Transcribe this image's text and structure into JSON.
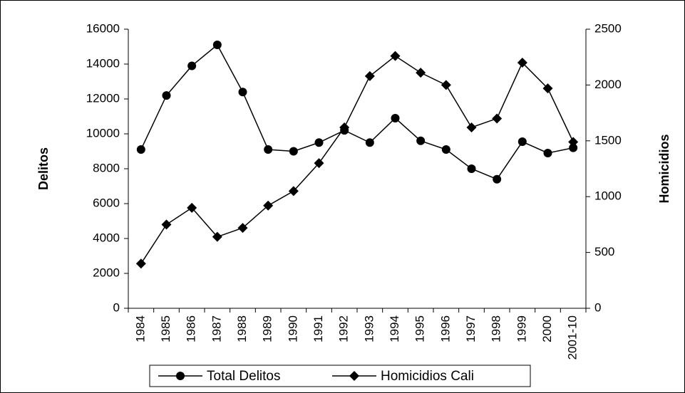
{
  "chart_data": {
    "type": "line",
    "categories": [
      "1984",
      "1985",
      "1986",
      "1987",
      "1988",
      "1989",
      "1990",
      "1991",
      "1992",
      "1993",
      "1994",
      "1995",
      "1996",
      "1997",
      "1998",
      "1999",
      "2000",
      "2001-10"
    ],
    "series": [
      {
        "name": "Total Delitos",
        "color": "#000000",
        "marker": "circle",
        "values": [
          9100,
          12200,
          13900,
          15100,
          12400,
          9100,
          9000,
          9500,
          10200,
          9500,
          10900,
          9600,
          9100,
          8000,
          7400,
          9550,
          8900,
          9200
        ]
      },
      {
        "name": "Homicidios Cali",
        "color": "#000000",
        "marker": "diamond",
        "axis": "y2",
        "values": [
          400,
          750,
          900,
          640,
          720,
          920,
          1050,
          1300,
          1620,
          2080,
          2260,
          2110,
          2000,
          1620,
          1700,
          2200,
          1970,
          1490
        ]
      }
    ],
    "ylabel": "Delitos",
    "y2label": "Homicidios",
    "ylim": [
      0,
      16000
    ],
    "yticks": [
      0,
      2000,
      4000,
      6000,
      8000,
      10000,
      12000,
      14000,
      16000
    ],
    "y2lim": [
      0,
      2500
    ],
    "y2ticks": [
      0,
      500,
      1000,
      1500,
      2000,
      2500
    ],
    "legend": "bottom"
  }
}
